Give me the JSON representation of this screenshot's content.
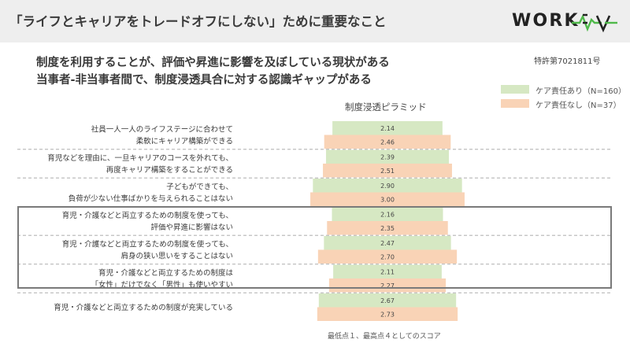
{
  "header": {
    "title": "「ライフとキャリアをトレードオフにしない」ために重要なこと",
    "logo_text": "WORKEV",
    "logo_text_parts": [
      "WORK",
      "EV"
    ]
  },
  "headline_1": "制度を利用することが、評価や昇進に影響を及ぼしている現状がある",
  "headline_2": "当事者-非当事者間で、制度浸透具合に対する認識ギャップがある",
  "patent": "特許第7021811号",
  "legend": [
    {
      "label": "ケア責任あり（N=160）",
      "color": "#d6e8c3"
    },
    {
      "label": "ケア責任なし（N=37）",
      "color": "#f9d3b6"
    }
  ],
  "footnote": "最低点１、最高点４としてのスコア",
  "colors": {
    "care_yes": "#d6e8c3",
    "care_no": "#f9d3b6",
    "divider": "#bdbdbd",
    "highlight": "#7a7a7a"
  },
  "chart_data": {
    "type": "bar",
    "title": "制度浸透ピラミッド",
    "layout": "centered-horizontal-pyramid",
    "scale_min": 1,
    "scale_max": 4,
    "categories": [
      [
        "社員一人一人のライフステージに合わせて",
        "柔軟にキャリア構築ができる"
      ],
      [
        "育児などを理由に、一旦キャリアのコースを外れても、",
        "再度キャリア構築をすることができる"
      ],
      [
        "子どもができても、",
        "負荷が少ない仕事ばかりを与えられることはない"
      ],
      [
        "育児・介護などと両立するための制度を使っても、",
        "評価や昇進に影響はない"
      ],
      [
        "育児・介護などと両立するための制度を使っても、",
        "肩身の狭い思いをすることはない"
      ],
      [
        "育児・介護などと両立するための制度は",
        "「女性」だけでなく「男性」も使いやすい"
      ],
      [
        "育児・介護などと両立するための制度が充実している"
      ]
    ],
    "series": [
      {
        "name": "ケア責任あり（N=160）",
        "values": [
          2.14,
          2.39,
          2.9,
          2.16,
          2.47,
          2.11,
          2.67
        ]
      },
      {
        "name": "ケア責任なし（N=37）",
        "values": [
          2.46,
          2.51,
          3.0,
          2.35,
          2.7,
          2.27,
          2.73
        ]
      }
    ],
    "highlighted_categories": [
      3,
      4,
      5
    ]
  }
}
